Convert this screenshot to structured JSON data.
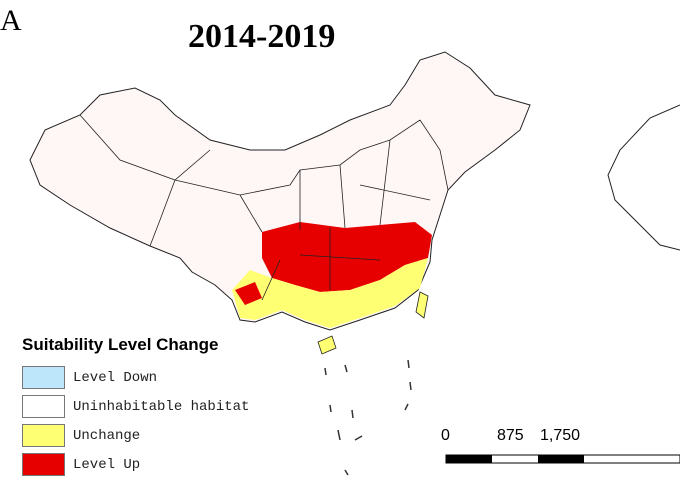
{
  "panel_letter": "A",
  "title": "2014-2019",
  "legend": {
    "title": "Suitability Level Change",
    "items": [
      {
        "label": "Level Down",
        "color": "#bde6fa"
      },
      {
        "label": "Uninhabitable habitat",
        "color": "#ffffff"
      },
      {
        "label": "Unchange",
        "color": "#ffff73"
      },
      {
        "label": "Level Up",
        "color": "#e60000"
      }
    ]
  },
  "scale_bar": {
    "labels": [
      "0",
      "875",
      "1,750"
    ]
  }
}
